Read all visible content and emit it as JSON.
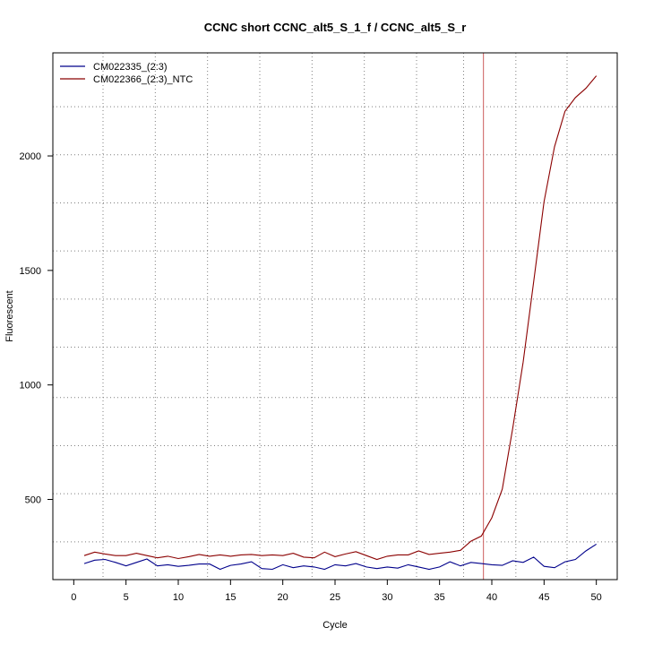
{
  "chart_data": {
    "type": "line",
    "title": "CCNC short CCNC_alt5_S_1_f / CCNC_alt5_S_r",
    "xlabel": "Cycle",
    "ylabel": "Fluorescent",
    "xlim": [
      -2,
      52
    ],
    "ylim": [
      150,
      2450
    ],
    "x_ticks": [
      0,
      5,
      10,
      15,
      20,
      25,
      30,
      35,
      40,
      45,
      50
    ],
    "y_ticks": [
      500,
      1000,
      1500,
      2000
    ],
    "grid": true,
    "v_grid": [
      2.8,
      7.8,
      12.8,
      17.8,
      22.8,
      27.8,
      32.8,
      37.3,
      42.3,
      47.2
    ],
    "h_grid": [
      315,
      525,
      735,
      945,
      1165,
      1375,
      1585,
      1795,
      2005,
      2215
    ],
    "threshold_x": 39.2,
    "threshold_color": "#cd5c5c",
    "legend_position": "top-left",
    "x": [
      1,
      2,
      3,
      4,
      5,
      6,
      7,
      8,
      9,
      10,
      11,
      12,
      13,
      14,
      15,
      16,
      17,
      18,
      19,
      20,
      21,
      22,
      23,
      24,
      25,
      26,
      27,
      28,
      29,
      30,
      31,
      32,
      33,
      34,
      35,
      36,
      37,
      38,
      39,
      40,
      41,
      42,
      43,
      44,
      45,
      46,
      47,
      48,
      49,
      50
    ],
    "series": [
      {
        "name": "CM022335_(2:3)",
        "color": "#00008b",
        "values": [
          220,
          235,
          238,
          225,
          210,
          225,
          240,
          210,
          215,
          208,
          212,
          218,
          218,
          195,
          212,
          218,
          228,
          198,
          195,
          215,
          202,
          210,
          205,
          195,
          215,
          210,
          220,
          205,
          198,
          205,
          200,
          215,
          205,
          195,
          205,
          228,
          210,
          225,
          220,
          215,
          212,
          232,
          225,
          248,
          208,
          202,
          228,
          238,
          275,
          305
        ]
      },
      {
        "name": "CM022366_(2:3)_NTC",
        "color": "#8b0000",
        "values": [
          255,
          270,
          262,
          255,
          255,
          265,
          255,
          245,
          252,
          242,
          250,
          260,
          252,
          258,
          252,
          258,
          260,
          255,
          258,
          255,
          265,
          248,
          245,
          270,
          250,
          262,
          272,
          255,
          238,
          252,
          258,
          258,
          275,
          260,
          265,
          270,
          278,
          318,
          340,
          420,
          545,
          810,
          1100,
          1450,
          1800,
          2040,
          2195,
          2255,
          2295,
          2350
        ]
      }
    ]
  }
}
